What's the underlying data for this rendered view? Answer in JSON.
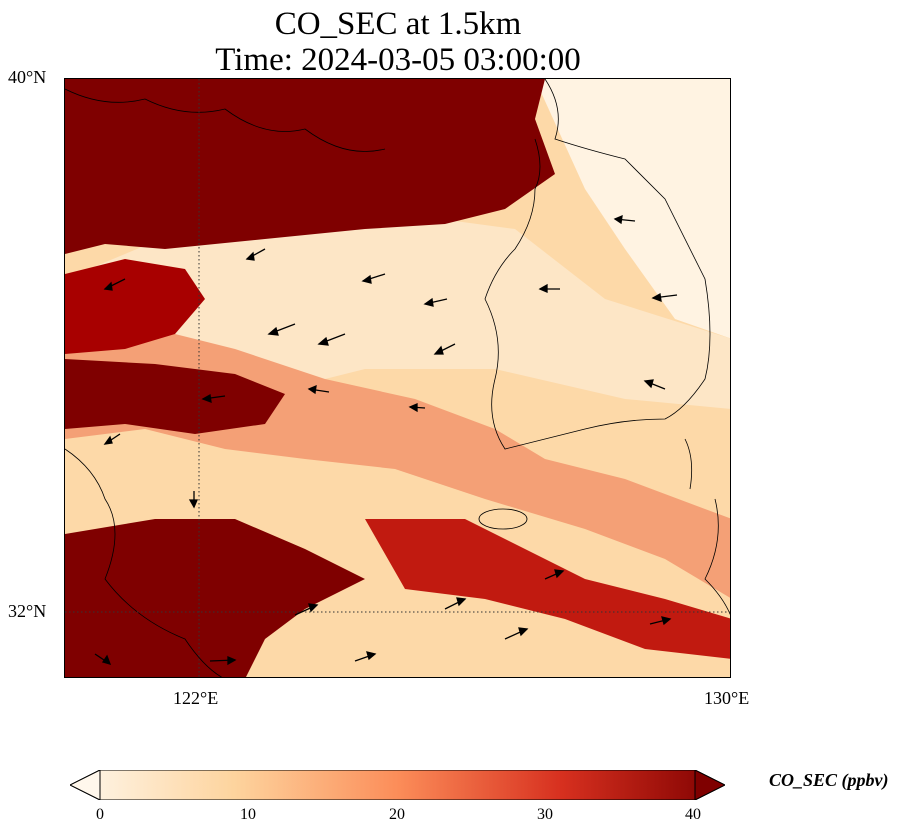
{
  "title": {
    "line1": "CO_SEC at 1.5km",
    "line2": "Time: 2024-03-05 03:00:00"
  },
  "map": {
    "lat_labels": [
      "40°N",
      "32°N"
    ],
    "lon_labels": [
      "122°E",
      "130°E"
    ],
    "extent": {
      "lon_min": 120,
      "lon_max": 130,
      "lat_min": 31,
      "lat_max": 40
    },
    "gridlines": "dotted",
    "features": [
      "coastlines",
      "wind-vectors",
      "co-concentration-field"
    ]
  },
  "colorbar": {
    "label": "CO_SEC (ppbv)",
    "ticks": [
      "0",
      "10",
      "20",
      "30",
      "40"
    ],
    "range": [
      0,
      40
    ],
    "extend": "both",
    "colormap": "OrRd",
    "colors": [
      "#fff7ec",
      "#fdd49e",
      "#fc8d59",
      "#d7301f",
      "#7f0000"
    ]
  }
}
